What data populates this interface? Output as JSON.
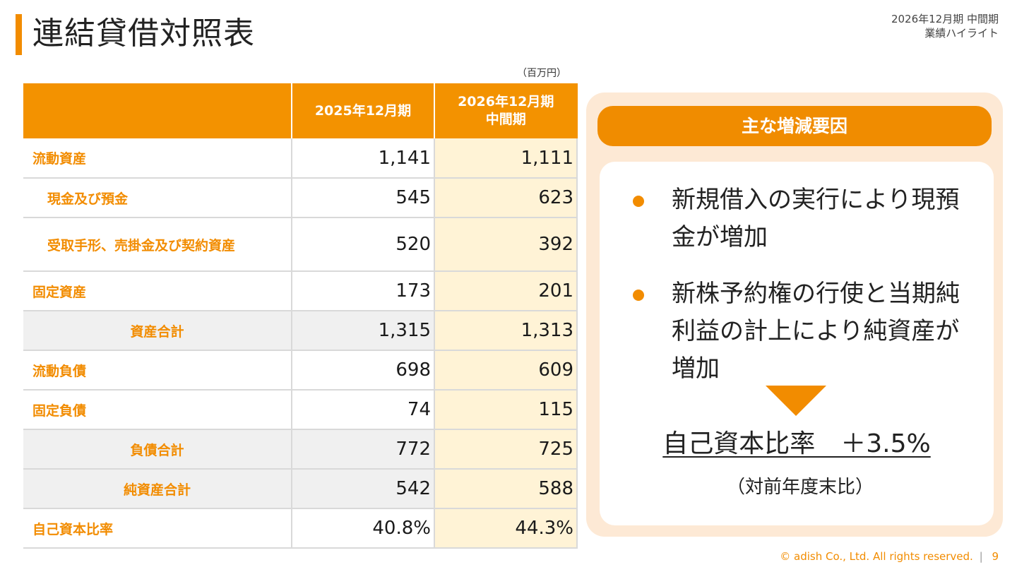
{
  "title": "連結貸借対照表",
  "period": {
    "line1": "2026年12月期 中間期",
    "line2": "業績ハイライト"
  },
  "unit": "（百万円）",
  "table": {
    "headers": [
      "",
      "2025年12月期",
      "2026年12月期\n中間期"
    ],
    "rows": [
      {
        "label": "流動資産",
        "v1": "1,141",
        "v2": "1,111",
        "kind": "main"
      },
      {
        "label": "現金及び預金",
        "v1": "545",
        "v2": "623",
        "kind": "sub"
      },
      {
        "label": "受取手形、売掛金及び契約資産",
        "v1": "520",
        "v2": "392",
        "kind": "sub-tall"
      },
      {
        "label": "固定資産",
        "v1": "173",
        "v2": "201",
        "kind": "main"
      },
      {
        "label": "資産合計",
        "v1": "1,315",
        "v2": "1,313",
        "kind": "total"
      },
      {
        "label": "流動負債",
        "v1": "698",
        "v2": "609",
        "kind": "main"
      },
      {
        "label": "固定負債",
        "v1": "74",
        "v2": "115",
        "kind": "main"
      },
      {
        "label": "負債合計",
        "v1": "772",
        "v2": "725",
        "kind": "total"
      },
      {
        "label": "純資産合計",
        "v1": "542",
        "v2": "588",
        "kind": "total"
      },
      {
        "label": "自己資本比率",
        "v1": "40.8%",
        "v2": "44.3%",
        "kind": "main"
      }
    ]
  },
  "panel": {
    "header": "主な増減要因",
    "bullets": [
      "新規借入の実行により現預金が増加",
      "新株予約権の行使と当期純利益の計上により純資産が増加"
    ],
    "ratio": "自己資本比率　＋3.5%",
    "ratio_note": "（対前年度末比）"
  },
  "footer": {
    "copyright": "© adish Co., Ltd. All rights reserved.",
    "separator": "|",
    "page": "9"
  },
  "colors": {
    "accent": "#f28c00",
    "highlight_column": "#fff3d6",
    "panel_bg": "#fde9d5"
  }
}
